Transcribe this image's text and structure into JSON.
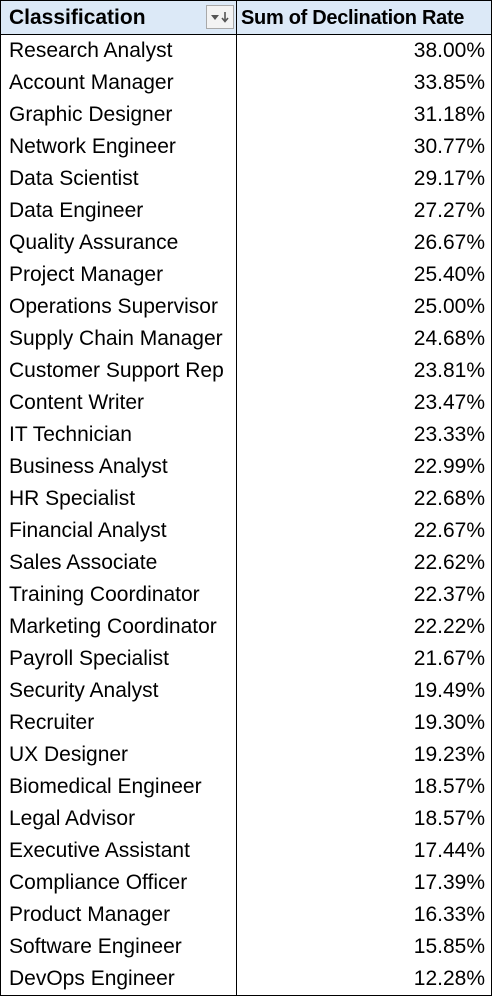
{
  "pivot": {
    "header": {
      "row_label": "Classification",
      "value_label": "Sum of Declination Rate",
      "filter_icon": "sort-descending-filter-icon"
    },
    "rows": [
      {
        "label": "Research Analyst",
        "value": "38.00%"
      },
      {
        "label": "Account Manager",
        "value": "33.85%"
      },
      {
        "label": "Graphic Designer",
        "value": "31.18%"
      },
      {
        "label": "Network Engineer",
        "value": "30.77%"
      },
      {
        "label": "Data Scientist",
        "value": "29.17%"
      },
      {
        "label": "Data Engineer",
        "value": "27.27%"
      },
      {
        "label": "Quality Assurance",
        "value": "26.67%"
      },
      {
        "label": "Project Manager",
        "value": "25.40%"
      },
      {
        "label": "Operations Supervisor",
        "value": "25.00%"
      },
      {
        "label": "Supply Chain Manager",
        "value": "24.68%"
      },
      {
        "label": "Customer Support Rep",
        "value": "23.81%"
      },
      {
        "label": "Content Writer",
        "value": "23.47%"
      },
      {
        "label": "IT Technician",
        "value": "23.33%"
      },
      {
        "label": "Business Analyst",
        "value": "22.99%"
      },
      {
        "label": "HR Specialist",
        "value": "22.68%"
      },
      {
        "label": "Financial Analyst",
        "value": "22.67%"
      },
      {
        "label": "Sales Associate",
        "value": "22.62%"
      },
      {
        "label": "Training Coordinator",
        "value": "22.37%"
      },
      {
        "label": "Marketing Coordinator",
        "value": "22.22%"
      },
      {
        "label": "Payroll Specialist",
        "value": "21.67%"
      },
      {
        "label": "Security Analyst",
        "value": "19.49%"
      },
      {
        "label": "Recruiter",
        "value": "19.30%"
      },
      {
        "label": "UX Designer",
        "value": "19.23%"
      },
      {
        "label": "Biomedical Engineer",
        "value": "18.57%"
      },
      {
        "label": "Legal Advisor",
        "value": "18.57%"
      },
      {
        "label": "Executive Assistant",
        "value": "17.44%"
      },
      {
        "label": "Compliance Officer",
        "value": "17.39%"
      },
      {
        "label": "Product Manager",
        "value": "16.33%"
      },
      {
        "label": "Software Engineer",
        "value": "15.85%"
      },
      {
        "label": "DevOps Engineer",
        "value": "12.28%"
      }
    ]
  }
}
